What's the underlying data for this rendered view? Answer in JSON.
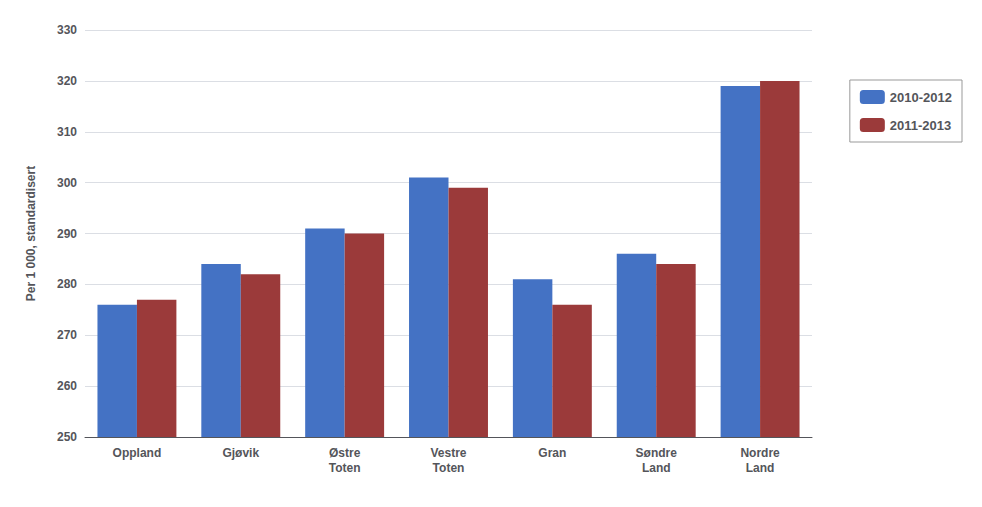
{
  "chart_data": {
    "type": "bar",
    "categories": [
      "Oppland",
      "Gjøvik",
      "Østre\nToten",
      "Vestre\nToten",
      "Gran",
      "Søndre\nLand",
      "Nordre\nLand"
    ],
    "series": [
      {
        "name": "2010-2012",
        "color": "#4472C4",
        "values": [
          276,
          284,
          291,
          301,
          281,
          286,
          319
        ]
      },
      {
        "name": "2011-2013",
        "color": "#9B3A3A",
        "values": [
          277,
          282,
          290,
          299,
          276,
          284,
          320
        ]
      }
    ],
    "ylabel": "Per 1 000, standardisert",
    "ylim": [
      250,
      330
    ],
    "yticks": [
      250,
      260,
      270,
      280,
      290,
      300,
      310,
      320,
      330
    ],
    "grid": true,
    "legend": "right"
  }
}
